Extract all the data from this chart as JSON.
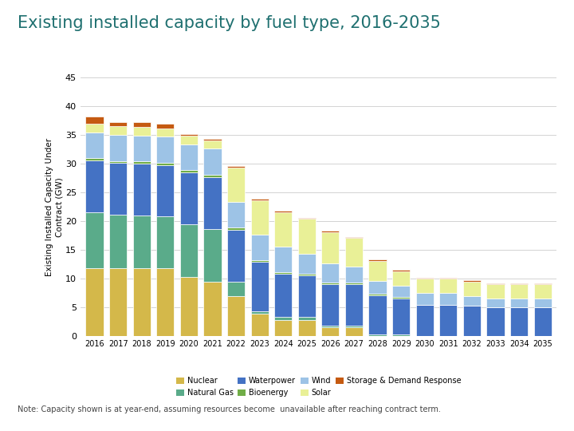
{
  "title": "Existing installed capacity by fuel type, 2016-2035",
  "ylabel": "Existing Installed Capacity Under\nContract (GW)",
  "note": "Note: Capacity shown is at year-end, assuming resources become  unavailable after reaching contract term.",
  "years": [
    2016,
    2017,
    2018,
    2019,
    2020,
    2021,
    2022,
    2023,
    2024,
    2025,
    2026,
    2027,
    2028,
    2029,
    2030,
    2031,
    2032,
    2033,
    2034,
    2035
  ],
  "series": {
    "Nuclear": [
      11.8,
      11.8,
      11.8,
      11.8,
      10.3,
      9.5,
      7.0,
      3.9,
      2.8,
      2.8,
      1.5,
      1.5,
      0.0,
      0.0,
      0.0,
      0.0,
      0.0,
      0.0,
      0.0,
      0.0
    ],
    "Natural Gas": [
      9.8,
      9.3,
      9.2,
      9.0,
      9.2,
      9.2,
      2.5,
      0.5,
      0.5,
      0.5,
      0.3,
      0.3,
      0.3,
      0.3,
      0.0,
      0.0,
      0.0,
      0.0,
      0.0,
      0.0
    ],
    "Waterpower": [
      9.0,
      9.0,
      9.0,
      9.0,
      9.0,
      9.0,
      9.0,
      8.5,
      7.5,
      7.3,
      7.3,
      7.3,
      6.8,
      6.2,
      5.5,
      5.5,
      5.3,
      5.0,
      5.0,
      5.0
    ],
    "Bioenergy": [
      0.4,
      0.4,
      0.4,
      0.4,
      0.4,
      0.4,
      0.4,
      0.3,
      0.3,
      0.3,
      0.3,
      0.3,
      0.3,
      0.3,
      0.0,
      0.0,
      0.0,
      0.0,
      0.0,
      0.0
    ],
    "Wind": [
      4.5,
      4.5,
      4.5,
      4.5,
      4.5,
      4.5,
      4.5,
      4.5,
      4.5,
      3.5,
      3.2,
      2.7,
      2.2,
      2.0,
      2.0,
      2.0,
      1.7,
      1.5,
      1.5,
      1.5
    ],
    "Solar": [
      1.5,
      1.5,
      1.5,
      1.5,
      1.5,
      1.5,
      6.0,
      6.0,
      6.0,
      6.0,
      5.5,
      5.0,
      3.5,
      2.5,
      2.5,
      2.5,
      2.5,
      2.5,
      2.5,
      2.5
    ],
    "Storage & Demand Response": [
      1.2,
      0.8,
      0.8,
      0.8,
      0.2,
      0.2,
      0.2,
      0.2,
      0.2,
      0.2,
      0.2,
      0.2,
      0.2,
      0.2,
      0.2,
      0.2,
      0.2,
      0.2,
      0.2,
      0.2
    ]
  },
  "colors": {
    "Nuclear": "#d4b84a",
    "Natural Gas": "#5aab8a",
    "Waterpower": "#4472c4",
    "Bioenergy": "#70ad47",
    "Wind": "#9dc3e6",
    "Solar": "#e9f097",
    "Storage & Demand Response": "#c55a11"
  },
  "ylim": [
    0,
    45
  ],
  "yticks": [
    0,
    5,
    10,
    15,
    20,
    25,
    30,
    35,
    40,
    45
  ],
  "title_color": "#1f7070",
  "title_fontsize": 15,
  "background_color": "#ffffff"
}
